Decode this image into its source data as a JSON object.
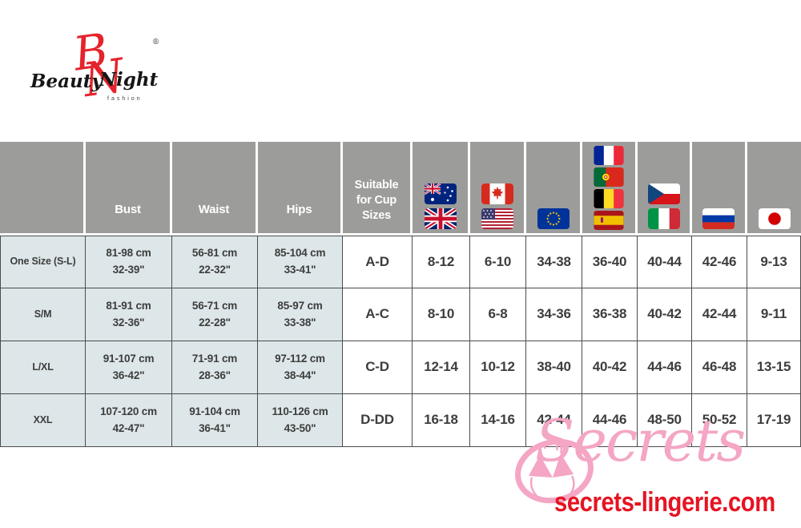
{
  "brand": {
    "monogram_b": "B",
    "monogram_n": "N",
    "word_beauty": "Beauty",
    "word_night": "Night",
    "tagline": "fashion",
    "registered": "®"
  },
  "size_chart": {
    "columns": {
      "size": "",
      "bust": "Bust",
      "waist": "Waist",
      "hips": "Hips",
      "cup": "Suitable for Cup Sizes"
    },
    "flag_columns": [
      {
        "name": "australia-uk",
        "flags": [
          "australia",
          "uk"
        ]
      },
      {
        "name": "canada-usa",
        "flags": [
          "canada",
          "usa"
        ]
      },
      {
        "name": "eu",
        "flags": [
          "eu"
        ]
      },
      {
        "name": "france-portugal-belgium-spain",
        "flags": [
          "france",
          "portugal",
          "belgium",
          "spain"
        ]
      },
      {
        "name": "czech-italy",
        "flags": [
          "czech-republic",
          "italy"
        ]
      },
      {
        "name": "russia",
        "flags": [
          "russia"
        ]
      },
      {
        "name": "japan",
        "flags": [
          "japan"
        ]
      }
    ],
    "rows": [
      {
        "size": "One Size (S-L)",
        "bust": [
          "81-98 cm",
          "32-39\""
        ],
        "waist": [
          "56-81 cm",
          "22-32\""
        ],
        "hips": [
          "85-104 cm",
          "33-41\""
        ],
        "cup": "A-D",
        "intl_sizes": [
          "8-12",
          "6-10",
          "34-38",
          "36-40",
          "40-44",
          "42-46",
          "9-13"
        ]
      },
      {
        "size": "S/M",
        "bust": [
          "81-91 cm",
          "32-36\""
        ],
        "waist": [
          "56-71 cm",
          "22-28\""
        ],
        "hips": [
          "85-97 cm",
          "33-38\""
        ],
        "cup": "A-C",
        "intl_sizes": [
          "8-10",
          "6-8",
          "34-36",
          "36-38",
          "40-42",
          "42-44",
          "9-11"
        ]
      },
      {
        "size": "L/XL",
        "bust": [
          "91-107 cm",
          "36-42\""
        ],
        "waist": [
          "71-91 cm",
          "28-36\""
        ],
        "hips": [
          "97-112 cm",
          "38-44\""
        ],
        "cup": "C-D",
        "intl_sizes": [
          "12-14",
          "10-12",
          "38-40",
          "40-42",
          "44-46",
          "46-48",
          "13-15"
        ]
      },
      {
        "size": "XXL",
        "bust": [
          "107-120 cm",
          "42-47\""
        ],
        "waist": [
          "91-104 cm",
          "36-41\""
        ],
        "hips": [
          "110-126 cm",
          "43-50\""
        ],
        "cup": "D-DD",
        "intl_sizes": [
          "16-18",
          "14-16",
          "42-44",
          "44-46",
          "48-50",
          "50-52",
          "17-19"
        ]
      }
    ]
  },
  "watermark": {
    "script_text": "Secrets",
    "website": "secrets-lingerie.com"
  },
  "colors": {
    "header_bg": "#9c9c9a",
    "measure_cell_bg": "#dde6e8",
    "cell_border": "#4c4c4c",
    "cell_text": "#3d3d3d",
    "logo_red": "#e5232b",
    "watermark_pink": "#f4a6c4",
    "website_red": "#e61423"
  }
}
